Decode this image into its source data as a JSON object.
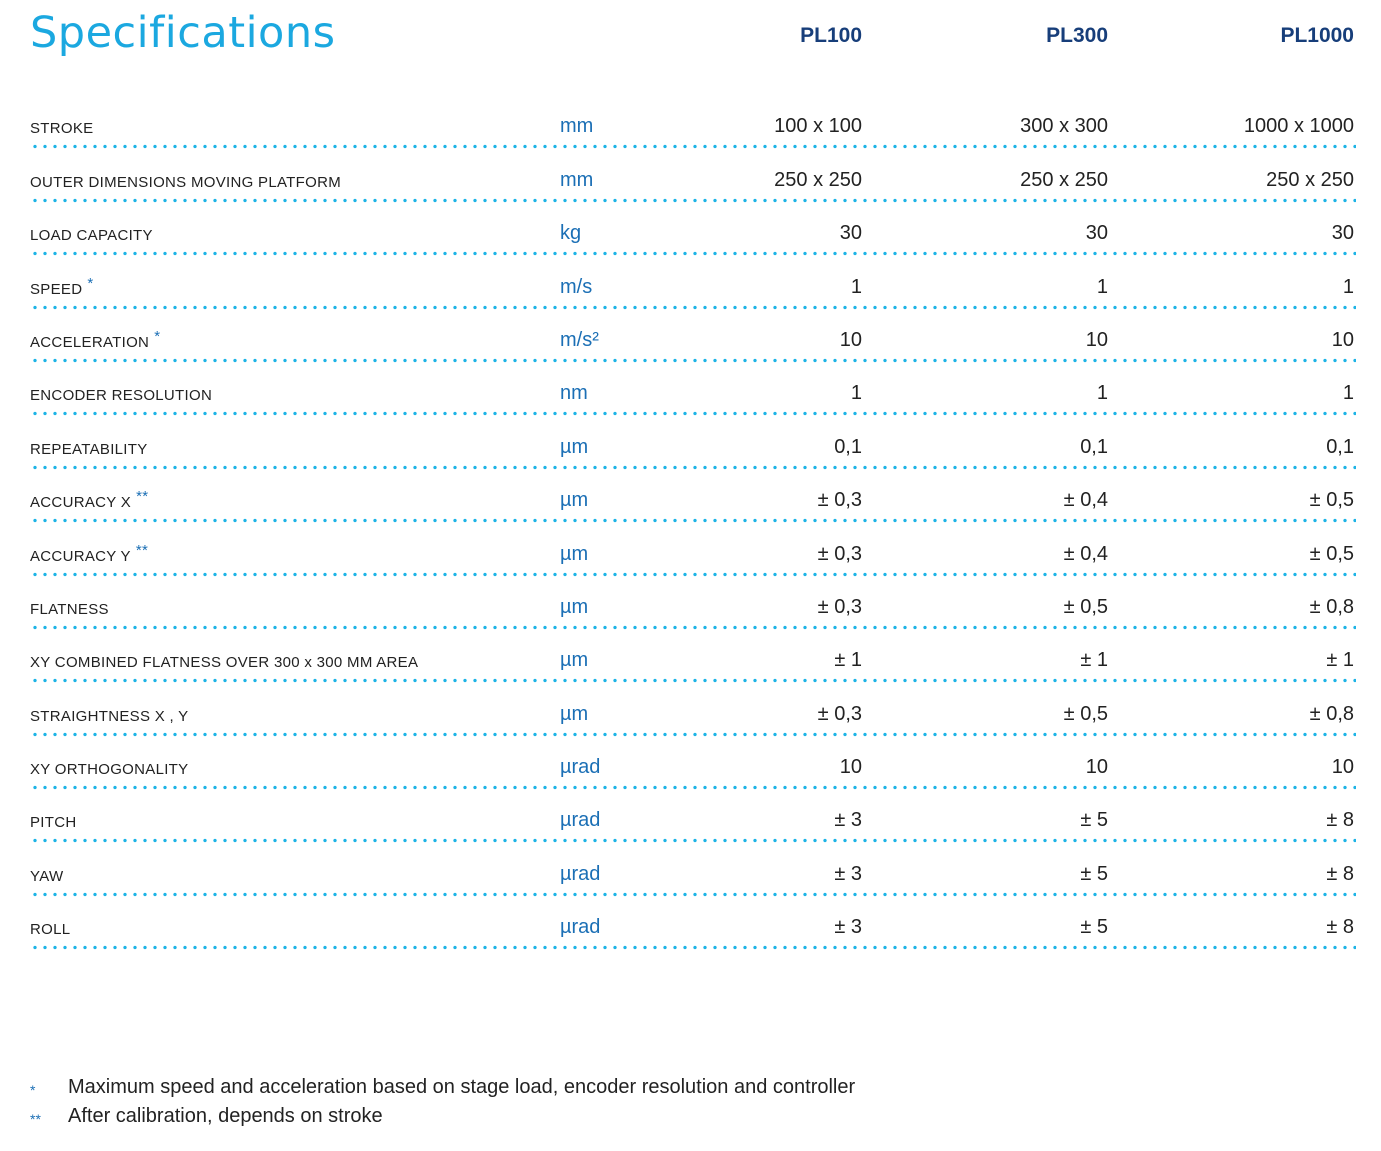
{
  "title": "Specifications",
  "columns": [
    "PL100",
    "PL300",
    "PL1000"
  ],
  "rows": [
    {
      "label": "STROKE",
      "star": "",
      "unit": "mm",
      "values": [
        "100 x 100",
        "300 x 300",
        "1000 x 1000"
      ]
    },
    {
      "label": "OUTER DIMENSIONS MOVING PLATFORM",
      "star": "",
      "unit": "mm",
      "values": [
        "250 x 250",
        "250 x 250",
        "250 x 250"
      ]
    },
    {
      "label": "LOAD CAPACITY",
      "star": "",
      "unit": "kg",
      "values": [
        "30",
        "30",
        "30"
      ]
    },
    {
      "label": "SPEED",
      "star": "*",
      "unit": "m/s",
      "values": [
        "1",
        "1",
        "1"
      ]
    },
    {
      "label": "ACCELERATION",
      "star": "*",
      "unit": "m/s²",
      "values": [
        "10",
        "10",
        "10"
      ]
    },
    {
      "label": "ENCODER RESOLUTION",
      "star": "",
      "unit": "nm",
      "values": [
        "1",
        "1",
        "1"
      ]
    },
    {
      "label": "REPEATABILITY",
      "star": "",
      "unit": "µm",
      "values": [
        "0,1",
        "0,1",
        "0,1"
      ]
    },
    {
      "label": "ACCURACY X",
      "star": "**",
      "unit": "µm",
      "values": [
        "± 0,3",
        "± 0,4",
        "± 0,5"
      ]
    },
    {
      "label": "ACCURACY Y",
      "star": "**",
      "unit": "µm",
      "values": [
        "± 0,3",
        "± 0,4",
        "± 0,5"
      ]
    },
    {
      "label": "FLATNESS",
      "star": "",
      "unit": "µm",
      "values": [
        "± 0,3",
        "± 0,5",
        "± 0,8"
      ]
    },
    {
      "label": "XY COMBINED FLATNESS OVER 300 x 300 MM AREA",
      "star": "",
      "unit": "µm",
      "values": [
        "± 1",
        "± 1",
        "± 1"
      ]
    },
    {
      "label": "STRAIGHTNESS X , Y",
      "star": "",
      "unit": "µm",
      "values": [
        "± 0,3",
        "± 0,5",
        "± 0,8"
      ]
    },
    {
      "label": "XY ORTHOGONALITY",
      "star": "",
      "unit": "µrad",
      "values": [
        "10",
        "10",
        "10"
      ]
    },
    {
      "label": "PITCH",
      "star": "",
      "unit": "µrad",
      "values": [
        "± 3",
        "± 5",
        "± 8"
      ]
    },
    {
      "label": "YAW",
      "star": "",
      "unit": "µrad",
      "values": [
        "± 3",
        "± 5",
        "± 8"
      ]
    },
    {
      "label": "ROLL",
      "star": "",
      "unit": "µrad",
      "values": [
        "± 3",
        "± 5",
        "± 8"
      ]
    }
  ],
  "footnotes": [
    {
      "mark": "*",
      "text": "Maximum speed and acceleration based on stage load, encoder resolution and controller"
    },
    {
      "mark": "**",
      "text": "After calibration, depends on stroke"
    }
  ],
  "colors": {
    "title": "#1ba8e0",
    "header": "#173e7a",
    "unit": "#1b6fb5",
    "dots": "#1eb4e6"
  }
}
